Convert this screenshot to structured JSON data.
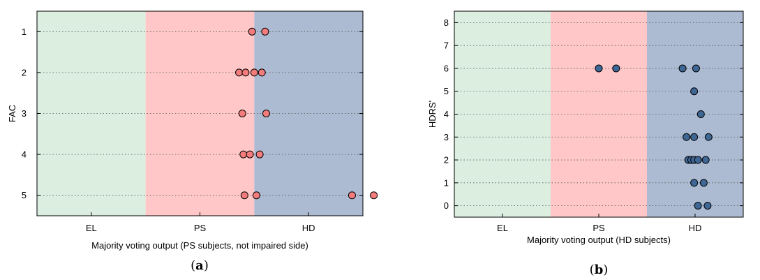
{
  "chart_data": [
    {
      "type": "scatter",
      "panel_label_parts": [
        "(",
        "a",
        ")"
      ],
      "xlabel": "Majority voting output (PS subjects, not impaired side)",
      "ylabel": "FAC",
      "categories": [
        "EL",
        "PS",
        "HD"
      ],
      "y_ticks": [
        1,
        2,
        3,
        4,
        5
      ],
      "y_inverted": true,
      "ylim": [
        0.5,
        5.5
      ],
      "region_colors": [
        "#dbeee0",
        "#ffc7c7",
        "#adbbd2"
      ],
      "marker_color": "#f47c7c",
      "grid": "horizontal dotted",
      "points": [
        {
          "x": 1.48,
          "y": 1
        },
        {
          "x": 1.6,
          "y": 1
        },
        {
          "x": 1.36,
          "y": 2
        },
        {
          "x": 1.42,
          "y": 2
        },
        {
          "x": 1.5,
          "y": 2
        },
        {
          "x": 1.57,
          "y": 2
        },
        {
          "x": 1.39,
          "y": 3
        },
        {
          "x": 1.61,
          "y": 3
        },
        {
          "x": 1.4,
          "y": 4
        },
        {
          "x": 1.46,
          "y": 4
        },
        {
          "x": 1.55,
          "y": 4
        },
        {
          "x": 1.41,
          "y": 5
        },
        {
          "x": 1.52,
          "y": 5
        },
        {
          "x": 2.4,
          "y": 5
        },
        {
          "x": 2.6,
          "y": 5
        }
      ]
    },
    {
      "type": "scatter",
      "panel_label_parts": [
        "(",
        "b",
        ")"
      ],
      "xlabel": "Majority voting output (HD subjects)",
      "ylabel": "HDRS'",
      "categories": [
        "EL",
        "PS",
        "HD"
      ],
      "y_ticks": [
        0,
        1,
        2,
        3,
        4,
        5,
        6,
        7,
        8
      ],
      "y_inverted": false,
      "ylim": [
        -0.5,
        8.5
      ],
      "region_colors": [
        "#dbeee0",
        "#ffc7c7",
        "#adbbd2"
      ],
      "marker_color": "#3f6795",
      "grid": "horizontal dotted",
      "points": [
        {
          "x": 1.0,
          "y": 6
        },
        {
          "x": 1.18,
          "y": 6
        },
        {
          "x": 1.87,
          "y": 6
        },
        {
          "x": 2.01,
          "y": 6
        },
        {
          "x": 1.99,
          "y": 5
        },
        {
          "x": 2.06,
          "y": 4
        },
        {
          "x": 1.91,
          "y": 3
        },
        {
          "x": 1.99,
          "y": 3
        },
        {
          "x": 2.14,
          "y": 3
        },
        {
          "x": 1.93,
          "y": 2
        },
        {
          "x": 1.96,
          "y": 2
        },
        {
          "x": 1.99,
          "y": 2
        },
        {
          "x": 2.03,
          "y": 2
        },
        {
          "x": 2.11,
          "y": 2
        },
        {
          "x": 1.99,
          "y": 1
        },
        {
          "x": 2.09,
          "y": 1
        },
        {
          "x": 2.03,
          "y": 0
        },
        {
          "x": 2.13,
          "y": 0
        }
      ]
    }
  ]
}
